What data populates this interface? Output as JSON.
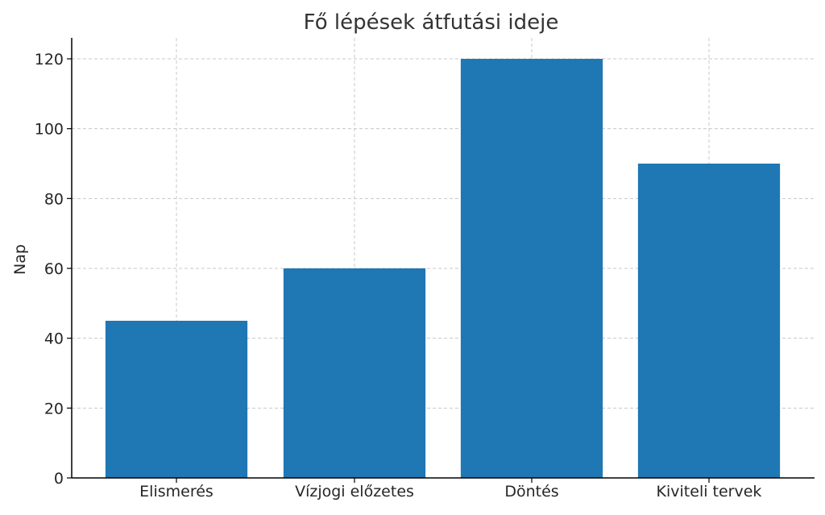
{
  "chart_data": {
    "type": "bar",
    "title": "Fő lépések átfutási ideje",
    "xlabel": "",
    "ylabel": "Nap",
    "categories": [
      "Elismerés",
      "Vízjogi előzetes",
      "Döntés",
      "Kiviteli tervek"
    ],
    "values": [
      45,
      60,
      120,
      90
    ],
    "ylim": [
      0,
      126
    ],
    "yticks": [
      0,
      20,
      40,
      60,
      80,
      100,
      120
    ],
    "grid": true,
    "bar_color": "#1f77b4"
  }
}
